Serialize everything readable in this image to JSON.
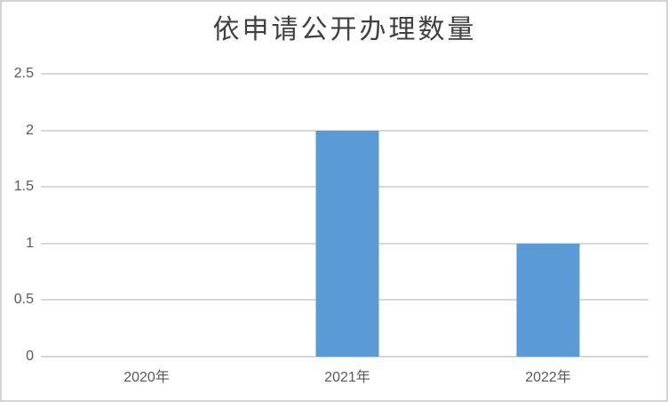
{
  "chart_data": {
    "type": "bar",
    "title": "依申请公开办理数量",
    "categories": [
      "2020年",
      "2021年",
      "2022年"
    ],
    "values": [
      0,
      2,
      1
    ],
    "xlabel": "",
    "ylabel": "",
    "ylim": [
      0,
      2.5
    ],
    "yticks": [
      {
        "value": 2.5,
        "label": "2.5"
      },
      {
        "value": 2,
        "label": "2"
      },
      {
        "value": 1.5,
        "label": "1.5"
      },
      {
        "value": 1,
        "label": "1"
      },
      {
        "value": 0.5,
        "label": "0.5"
      },
      {
        "value": 0,
        "label": "0"
      }
    ],
    "grid": true,
    "legend": false,
    "colors": {
      "bar": "#5b9bd5",
      "gridline": "#d9d9d9",
      "axis_line": "#d6d6d6",
      "tick_label": "#595959",
      "title": "#404040",
      "background": "#ffffff",
      "border": "#d4d4d4"
    }
  }
}
